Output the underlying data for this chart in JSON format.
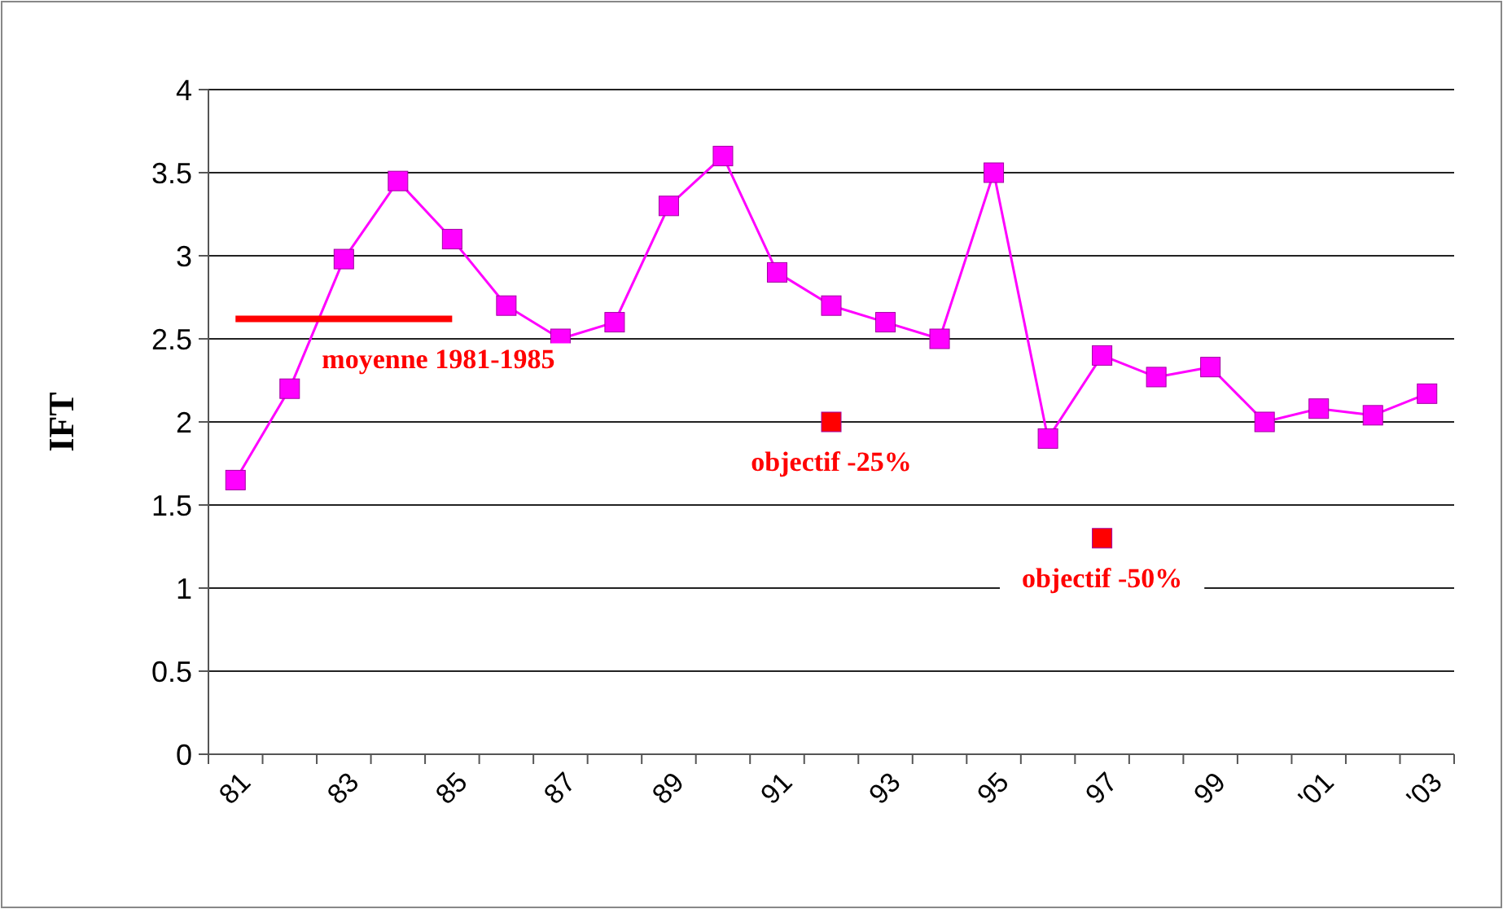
{
  "chart_data": {
    "type": "line",
    "ylabel": "IFT",
    "categories": [
      "81",
      null,
      "83",
      null,
      "85",
      null,
      "87",
      null,
      "89",
      null,
      "91",
      null,
      "93",
      null,
      "95",
      null,
      "97",
      null,
      "99",
      null,
      "'01",
      null,
      "'03"
    ],
    "series": [
      {
        "color": "#ff00ff",
        "marker": "square",
        "values": [
          1.65,
          2.2,
          2.98,
          3.45,
          3.1,
          2.7,
          2.5,
          2.6,
          3.3,
          3.6,
          2.9,
          2.7,
          2.6,
          2.5,
          3.5,
          1.9,
          2.4,
          2.27,
          2.33,
          2.0,
          2.08,
          2.04,
          2.17
        ]
      },
      {
        "type": "line",
        "name": "moyenne 1981-1985",
        "color": "#ff0000",
        "marker": "none",
        "values": [
          2.62,
          2.62,
          2.62,
          2.62,
          2.62,
          null,
          null,
          null,
          null,
          null,
          null,
          null,
          null,
          null,
          null,
          null,
          null,
          null,
          null,
          null,
          null,
          null,
          null
        ]
      },
      {
        "type": "scatter",
        "name": "objectif -25%",
        "color": "#ff0000",
        "marker": "square",
        "values": [
          null,
          null,
          null,
          null,
          null,
          null,
          null,
          null,
          null,
          null,
          null,
          2.0,
          null,
          null,
          null,
          null,
          null,
          null,
          null,
          null,
          null,
          null,
          null
        ]
      },
      {
        "type": "scatter",
        "name": "objectif -50%",
        "color": "#ff0000",
        "marker": "square",
        "values": [
          null,
          null,
          null,
          null,
          null,
          null,
          null,
          null,
          null,
          null,
          null,
          null,
          null,
          null,
          null,
          null,
          1.3,
          null,
          null,
          null,
          null,
          null,
          null
        ]
      }
    ],
    "ylim": [
      0,
      4
    ],
    "yticks": [
      0,
      0.5,
      1,
      1.5,
      2,
      2.5,
      3,
      3.5,
      4
    ],
    "grid": "y"
  }
}
